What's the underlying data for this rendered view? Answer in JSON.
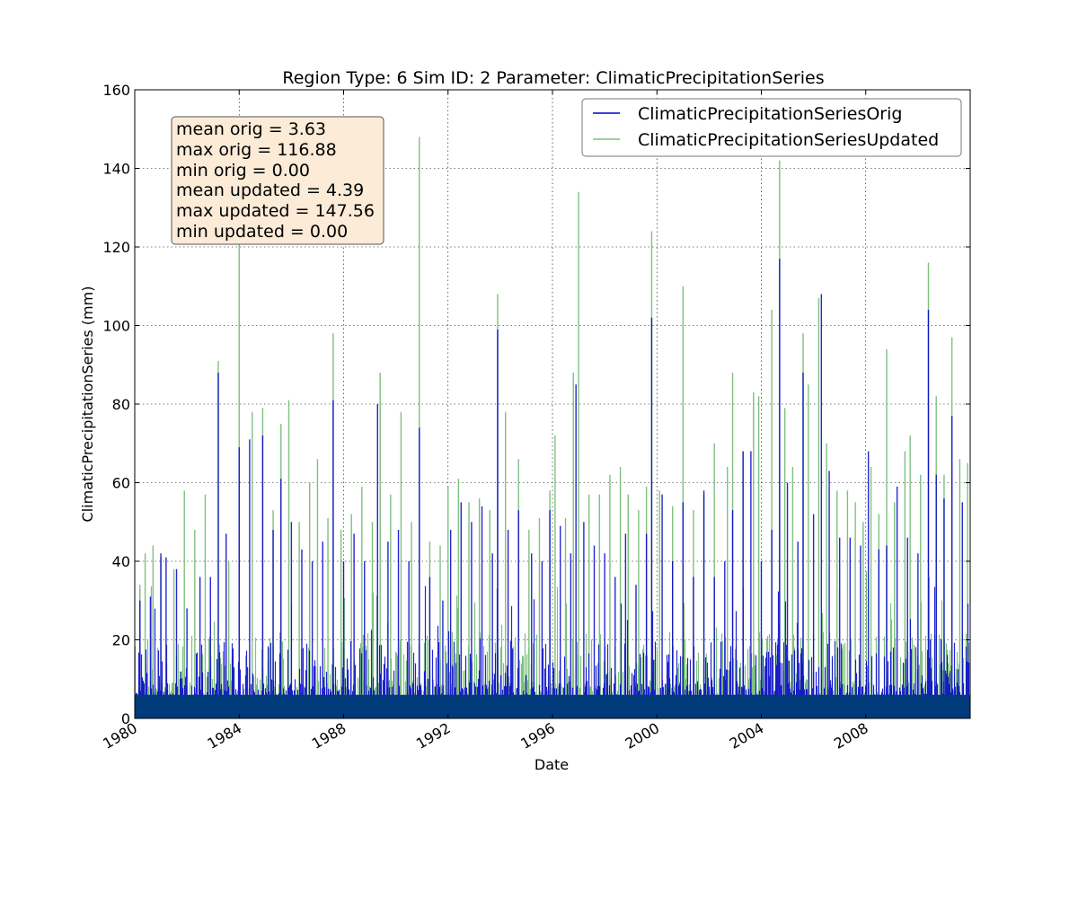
{
  "chart_data": {
    "type": "line",
    "title": "Region Type: 6 Sim ID: 2 Parameter: ClimaticPrecipitationSeries",
    "xlabel": "Date",
    "ylabel": "ClimaticPrecipitationSeries (mm)",
    "xlim": [
      1980.0,
      2012.0
    ],
    "ylim": [
      0,
      160
    ],
    "x_ticks": [
      1980,
      1984,
      1988,
      1992,
      1996,
      2000,
      2004,
      2008
    ],
    "x_tick_labels": [
      "1980",
      "1984",
      "1988",
      "1992",
      "1996",
      "2000",
      "2004",
      "2008"
    ],
    "y_ticks": [
      0,
      20,
      40,
      60,
      80,
      100,
      120,
      140,
      160
    ],
    "y_tick_labels": [
      "0",
      "20",
      "40",
      "60",
      "80",
      "100",
      "120",
      "140",
      "160"
    ],
    "grid": true,
    "legend_position": "top-right",
    "series": [
      {
        "name": "ClimaticPrecipitationSeriesUpdated",
        "color": "#7fc07f",
        "peaks": [
          [
            1980.2,
            34
          ],
          [
            1980.4,
            42
          ],
          [
            1980.7,
            44
          ],
          [
            1981.0,
            41
          ],
          [
            1981.5,
            38
          ],
          [
            1981.9,
            58
          ],
          [
            1982.3,
            48
          ],
          [
            1982.7,
            57
          ],
          [
            1983.2,
            91
          ],
          [
            1983.6,
            40
          ],
          [
            1984.0,
            136
          ],
          [
            1984.5,
            78
          ],
          [
            1984.9,
            79
          ],
          [
            1985.3,
            53
          ],
          [
            1985.6,
            75
          ],
          [
            1985.9,
            81
          ],
          [
            1986.3,
            50
          ],
          [
            1986.7,
            60
          ],
          [
            1987.0,
            66
          ],
          [
            1987.4,
            51
          ],
          [
            1987.6,
            98
          ],
          [
            1987.9,
            48
          ],
          [
            1988.3,
            52
          ],
          [
            1988.7,
            59
          ],
          [
            1989.1,
            50
          ],
          [
            1989.4,
            88
          ],
          [
            1989.8,
            57
          ],
          [
            1990.2,
            78
          ],
          [
            1990.6,
            50
          ],
          [
            1990.9,
            148
          ],
          [
            1991.3,
            45
          ],
          [
            1991.7,
            44
          ],
          [
            1992.0,
            59
          ],
          [
            1992.4,
            61
          ],
          [
            1992.8,
            55
          ],
          [
            1993.2,
            56
          ],
          [
            1993.6,
            53
          ],
          [
            1993.9,
            108
          ],
          [
            1994.2,
            78
          ],
          [
            1994.7,
            66
          ],
          [
            1995.1,
            48
          ],
          [
            1995.5,
            51
          ],
          [
            1995.9,
            58
          ],
          [
            1996.1,
            72
          ],
          [
            1996.5,
            51
          ],
          [
            1996.8,
            88
          ],
          [
            1997.0,
            134
          ],
          [
            1997.4,
            57
          ],
          [
            1997.8,
            57
          ],
          [
            1998.2,
            62
          ],
          [
            1998.6,
            64
          ],
          [
            1998.9,
            57
          ],
          [
            1999.3,
            53
          ],
          [
            1999.6,
            59
          ],
          [
            1999.8,
            124
          ],
          [
            2000.1,
            58
          ],
          [
            2000.6,
            54
          ],
          [
            2001.0,
            110
          ],
          [
            2001.4,
            53
          ],
          [
            2001.8,
            57
          ],
          [
            2002.2,
            70
          ],
          [
            2002.7,
            64
          ],
          [
            2002.9,
            88
          ],
          [
            2003.3,
            68
          ],
          [
            2003.7,
            83
          ],
          [
            2003.9,
            82
          ],
          [
            2004.4,
            104
          ],
          [
            2004.7,
            142
          ],
          [
            2004.9,
            79
          ],
          [
            2005.2,
            64
          ],
          [
            2005.6,
            98
          ],
          [
            2005.8,
            85
          ],
          [
            2006.2,
            107
          ],
          [
            2006.5,
            70
          ],
          [
            2006.9,
            58
          ],
          [
            2007.3,
            58
          ],
          [
            2007.6,
            55
          ],
          [
            2007.9,
            50
          ],
          [
            2008.2,
            64
          ],
          [
            2008.5,
            52
          ],
          [
            2008.8,
            94
          ],
          [
            2009.1,
            55
          ],
          [
            2009.5,
            68
          ],
          [
            2009.7,
            72
          ],
          [
            2010.1,
            62
          ],
          [
            2010.4,
            116
          ],
          [
            2010.7,
            82
          ],
          [
            2011.0,
            62
          ],
          [
            2011.3,
            97
          ],
          [
            2011.6,
            66
          ],
          [
            2011.9,
            65
          ]
        ]
      },
      {
        "name": "ClimaticPrecipitationSeriesOrig",
        "color": "#0000cc",
        "peaks": [
          [
            1980.2,
            30
          ],
          [
            1980.6,
            31
          ],
          [
            1981.0,
            42
          ],
          [
            1981.2,
            41
          ],
          [
            1981.6,
            38
          ],
          [
            1982.0,
            28
          ],
          [
            1982.5,
            36
          ],
          [
            1982.9,
            36
          ],
          [
            1983.2,
            88
          ],
          [
            1983.5,
            47
          ],
          [
            1984.0,
            69
          ],
          [
            1984.4,
            71
          ],
          [
            1984.9,
            72
          ],
          [
            1985.3,
            48
          ],
          [
            1985.6,
            61
          ],
          [
            1986.0,
            50
          ],
          [
            1986.4,
            43
          ],
          [
            1986.8,
            40
          ],
          [
            1987.2,
            45
          ],
          [
            1987.6,
            81
          ],
          [
            1988.0,
            40
          ],
          [
            1988.4,
            47
          ],
          [
            1988.8,
            40
          ],
          [
            1989.3,
            80
          ],
          [
            1989.7,
            45
          ],
          [
            1990.1,
            48
          ],
          [
            1990.5,
            40
          ],
          [
            1990.9,
            74
          ],
          [
            1991.3,
            36
          ],
          [
            1991.8,
            30
          ],
          [
            1992.1,
            48
          ],
          [
            1992.5,
            55
          ],
          [
            1992.9,
            50
          ],
          [
            1993.3,
            54
          ],
          [
            1993.7,
            42
          ],
          [
            1993.9,
            99
          ],
          [
            1994.3,
            48
          ],
          [
            1994.7,
            53
          ],
          [
            1995.2,
            42
          ],
          [
            1995.6,
            40
          ],
          [
            1995.9,
            53
          ],
          [
            1996.3,
            49
          ],
          [
            1996.7,
            42
          ],
          [
            1996.9,
            85
          ],
          [
            1997.2,
            50
          ],
          [
            1997.6,
            44
          ],
          [
            1998.0,
            42
          ],
          [
            1998.4,
            36
          ],
          [
            1998.8,
            47
          ],
          [
            1999.2,
            34
          ],
          [
            1999.6,
            47
          ],
          [
            1999.8,
            102
          ],
          [
            2000.2,
            57
          ],
          [
            2000.6,
            40
          ],
          [
            2001.0,
            55
          ],
          [
            2001.4,
            36
          ],
          [
            2001.8,
            58
          ],
          [
            2002.2,
            36
          ],
          [
            2002.6,
            40
          ],
          [
            2002.9,
            53
          ],
          [
            2003.3,
            68
          ],
          [
            2003.6,
            68
          ],
          [
            2004.0,
            40
          ],
          [
            2004.4,
            48
          ],
          [
            2004.7,
            117
          ],
          [
            2005.0,
            60
          ],
          [
            2005.4,
            45
          ],
          [
            2005.6,
            88
          ],
          [
            2006.0,
            52
          ],
          [
            2006.3,
            108
          ],
          [
            2006.6,
            63
          ],
          [
            2007.0,
            46
          ],
          [
            2007.4,
            46
          ],
          [
            2007.8,
            44
          ],
          [
            2008.1,
            68
          ],
          [
            2008.5,
            43
          ],
          [
            2008.8,
            44
          ],
          [
            2009.2,
            59
          ],
          [
            2009.6,
            46
          ],
          [
            2010.0,
            42
          ],
          [
            2010.4,
            104
          ],
          [
            2010.7,
            62
          ],
          [
            2011.0,
            56
          ],
          [
            2011.3,
            77
          ],
          [
            2011.7,
            55
          ]
        ]
      }
    ],
    "stats": [
      "mean orig = 3.63",
      "max orig = 116.88",
      "min orig = 0.00",
      "mean updated = 4.39",
      "max updated = 147.56",
      "min updated = 0.00"
    ],
    "stats_box_color": "#fbebd7"
  }
}
